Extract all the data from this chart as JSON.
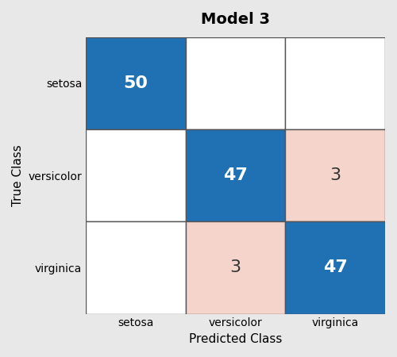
{
  "title": "Model 3",
  "xlabel": "Predicted Class",
  "ylabel": "True Class",
  "classes": [
    "setosa",
    "versicolor",
    "virginica"
  ],
  "matrix": [
    [
      50,
      0,
      0
    ],
    [
      0,
      47,
      3
    ],
    [
      0,
      3,
      47
    ]
  ],
  "blue_color": "#2070B4",
  "pink_color": "#F5D5CB",
  "white_color": "#FFFFFF",
  "bg_color": "#E8E8E8",
  "text_white": "#FFFFFF",
  "text_dark": "#333333",
  "title_fontsize": 14,
  "label_fontsize": 11,
  "tick_fontsize": 10,
  "value_fontsize": 16,
  "figsize": [
    5.0,
    4.5
  ]
}
